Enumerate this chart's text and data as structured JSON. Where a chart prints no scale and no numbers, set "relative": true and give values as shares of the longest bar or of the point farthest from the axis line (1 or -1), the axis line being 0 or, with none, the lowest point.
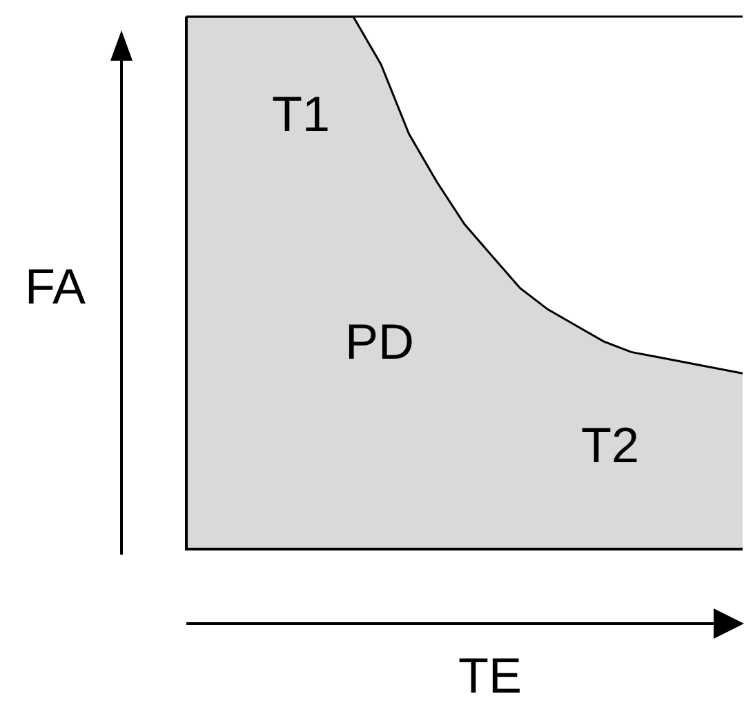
{
  "chart_data": {
    "type": "area",
    "relative": true,
    "xlabel": "TE",
    "ylabel": "FA",
    "categories": [
      null,
      null,
      null,
      null,
      null,
      null,
      null,
      null,
      null,
      null,
      null,
      null,
      null,
      null,
      null,
      null,
      null,
      null,
      null,
      null,
      null
    ],
    "series": [
      {
        "color": "#d9d9d9",
        "values": [
          1,
          1,
          1,
          1,
          1,
          1,
          1,
          0.91,
          0.78,
          0.69,
          0.61,
          0.55,
          0.49,
          0.45,
          0.42,
          0.39,
          0.37,
          0.36,
          0.35,
          0.34,
          0.33
        ]
      }
    ],
    "annotations": [
      "T1",
      "PD",
      "T2"
    ],
    "legend": false
  }
}
